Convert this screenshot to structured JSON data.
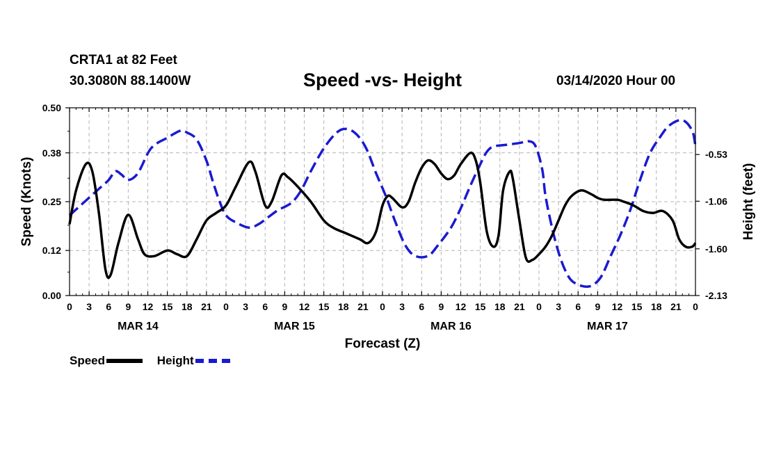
{
  "header": {
    "station": "CRTA1 at 82 Feet",
    "coords": "30.3080N 88.1400W",
    "title": "Speed -vs- Height",
    "date": "03/14/2020 Hour 00"
  },
  "legend": {
    "speed_label": "Speed",
    "height_label": "Height"
  },
  "colors": {
    "speed": "#000000",
    "height": "#1a1ad0",
    "grid": "#b4b4b4"
  },
  "chart_data": {
    "type": "line",
    "title": "Speed -vs- Height",
    "xlabel": "Forecast (Z)",
    "ylabel": "Speed (Knots)",
    "y2label": "Height (feet)",
    "x_range_hours": [
      0,
      96
    ],
    "ylim": [
      0,
      0.5
    ],
    "y2lim": [
      -2.13,
      -0.0
    ],
    "y_ticks": [
      "0.00",
      "0.12",
      "0.25",
      "0.38",
      "0.50"
    ],
    "y2_ticks": [
      "-2.13",
      "-1.60",
      "-1.06",
      "-0.53"
    ],
    "x_tick_labels": [
      "0",
      "3",
      "6",
      "9",
      "12",
      "15",
      "18",
      "21",
      "0",
      "3",
      "6",
      "9",
      "12",
      "15",
      "18",
      "21",
      "0",
      "3",
      "6",
      "9",
      "12",
      "15",
      "18",
      "21",
      "0",
      "3",
      "6",
      "9",
      "12",
      "15",
      "18",
      "21",
      "0"
    ],
    "date_labels": [
      {
        "hour": 10.5,
        "label": "MAR 14"
      },
      {
        "hour": 34.5,
        "label": "MAR 15"
      },
      {
        "hour": 58.5,
        "label": "MAR 16"
      },
      {
        "hour": 82.5,
        "label": "MAR 17"
      }
    ],
    "grid": true,
    "series": [
      {
        "name": "Speed",
        "axis": "left",
        "style": "solid",
        "points": [
          [
            0,
            0.19
          ],
          [
            1,
            0.28
          ],
          [
            2.5,
            0.35
          ],
          [
            3.5,
            0.33
          ],
          [
            4.5,
            0.22
          ],
          [
            5.5,
            0.07
          ],
          [
            6.3,
            0.055
          ],
          [
            7.5,
            0.14
          ],
          [
            9,
            0.215
          ],
          [
            10.5,
            0.15
          ],
          [
            11.5,
            0.11
          ],
          [
            13,
            0.105
          ],
          [
            15,
            0.12
          ],
          [
            16.5,
            0.11
          ],
          [
            18,
            0.105
          ],
          [
            19.5,
            0.15
          ],
          [
            21,
            0.2
          ],
          [
            22.5,
            0.22
          ],
          [
            24,
            0.24
          ],
          [
            25.5,
            0.29
          ],
          [
            27.5,
            0.355
          ],
          [
            28.5,
            0.33
          ],
          [
            30,
            0.24
          ],
          [
            31,
            0.25
          ],
          [
            32.5,
            0.32
          ],
          [
            33.5,
            0.315
          ],
          [
            35,
            0.29
          ],
          [
            37,
            0.25
          ],
          [
            39,
            0.2
          ],
          [
            40.5,
            0.18
          ],
          [
            42.5,
            0.165
          ],
          [
            44.5,
            0.15
          ],
          [
            45.8,
            0.14
          ],
          [
            47,
            0.17
          ],
          [
            48,
            0.24
          ],
          [
            48.8,
            0.265
          ],
          [
            49.5,
            0.26
          ],
          [
            51,
            0.235
          ],
          [
            52,
            0.25
          ],
          [
            53,
            0.3
          ],
          [
            54,
            0.34
          ],
          [
            55,
            0.36
          ],
          [
            56,
            0.35
          ],
          [
            57,
            0.325
          ],
          [
            58,
            0.31
          ],
          [
            59,
            0.32
          ],
          [
            60,
            0.35
          ],
          [
            61.5,
            0.38
          ],
          [
            62.3,
            0.36
          ],
          [
            63,
            0.3
          ],
          [
            64,
            0.17
          ],
          [
            65,
            0.13
          ],
          [
            65.8,
            0.16
          ],
          [
            66.5,
            0.28
          ],
          [
            67.5,
            0.33
          ],
          [
            68,
            0.31
          ],
          [
            69,
            0.2
          ],
          [
            70,
            0.1
          ],
          [
            71,
            0.095
          ],
          [
            72,
            0.11
          ],
          [
            73,
            0.13
          ],
          [
            74,
            0.16
          ],
          [
            75,
            0.2
          ],
          [
            76,
            0.24
          ],
          [
            77,
            0.265
          ],
          [
            78.5,
            0.28
          ],
          [
            80,
            0.27
          ],
          [
            81,
            0.26
          ],
          [
            82,
            0.255
          ],
          [
            84,
            0.255
          ],
          [
            85,
            0.25
          ],
          [
            86.5,
            0.24
          ],
          [
            88,
            0.225
          ],
          [
            89.5,
            0.22
          ],
          [
            91,
            0.225
          ],
          [
            92.5,
            0.2
          ],
          [
            93.5,
            0.15
          ],
          [
            94.5,
            0.13
          ],
          [
            95.5,
            0.13
          ],
          [
            96,
            0.14
          ]
        ]
      },
      {
        "name": "Height",
        "axis": "right",
        "style": "dashed",
        "points": [
          [
            0,
            -1.22
          ],
          [
            1.5,
            -1.12
          ],
          [
            3,
            -1.02
          ],
          [
            4.5,
            -0.92
          ],
          [
            6,
            -0.82
          ],
          [
            7,
            -0.72
          ],
          [
            8,
            -0.76
          ],
          [
            9,
            -0.82
          ],
          [
            10.5,
            -0.74
          ],
          [
            12.5,
            -0.46
          ],
          [
            15,
            -0.34
          ],
          [
            17,
            -0.26
          ],
          [
            18,
            -0.28
          ],
          [
            19.5,
            -0.36
          ],
          [
            21,
            -0.6
          ],
          [
            22,
            -0.84
          ],
          [
            23,
            -1.06
          ],
          [
            24,
            -1.22
          ],
          [
            25.5,
            -1.3
          ],
          [
            27.5,
            -1.36
          ],
          [
            29,
            -1.32
          ],
          [
            30.5,
            -1.24
          ],
          [
            32,
            -1.16
          ],
          [
            34,
            -1.08
          ],
          [
            35.5,
            -0.94
          ],
          [
            37,
            -0.72
          ],
          [
            39,
            -0.46
          ],
          [
            41,
            -0.28
          ],
          [
            42.5,
            -0.24
          ],
          [
            44,
            -0.3
          ],
          [
            45.5,
            -0.46
          ],
          [
            47,
            -0.74
          ],
          [
            48.5,
            -1.0
          ],
          [
            50,
            -1.3
          ],
          [
            51.5,
            -1.56
          ],
          [
            53,
            -1.68
          ],
          [
            55,
            -1.68
          ],
          [
            56.5,
            -1.56
          ],
          [
            58.5,
            -1.36
          ],
          [
            60,
            -1.14
          ],
          [
            61.5,
            -0.88
          ],
          [
            63,
            -0.64
          ],
          [
            64,
            -0.5
          ],
          [
            65,
            -0.44
          ],
          [
            67,
            -0.42
          ],
          [
            69,
            -0.4
          ],
          [
            70.5,
            -0.38
          ],
          [
            71.5,
            -0.44
          ],
          [
            72.5,
            -0.7
          ],
          [
            73,
            -1.0
          ],
          [
            74,
            -1.36
          ],
          [
            75,
            -1.64
          ],
          [
            76,
            -1.84
          ],
          [
            77,
            -1.96
          ],
          [
            78.5,
            -2.02
          ],
          [
            80,
            -2.02
          ],
          [
            81.5,
            -1.92
          ],
          [
            83,
            -1.68
          ],
          [
            84.5,
            -1.44
          ],
          [
            86,
            -1.16
          ],
          [
            87.5,
            -0.82
          ],
          [
            89,
            -0.52
          ],
          [
            90.5,
            -0.34
          ],
          [
            92,
            -0.2
          ],
          [
            94,
            -0.14
          ],
          [
            95.5,
            -0.26
          ],
          [
            96,
            -0.44
          ]
        ]
      }
    ]
  },
  "axes": {
    "left_label": "Speed (Knots)",
    "right_label": "Height (feet)",
    "x_label": "Forecast (Z)"
  }
}
